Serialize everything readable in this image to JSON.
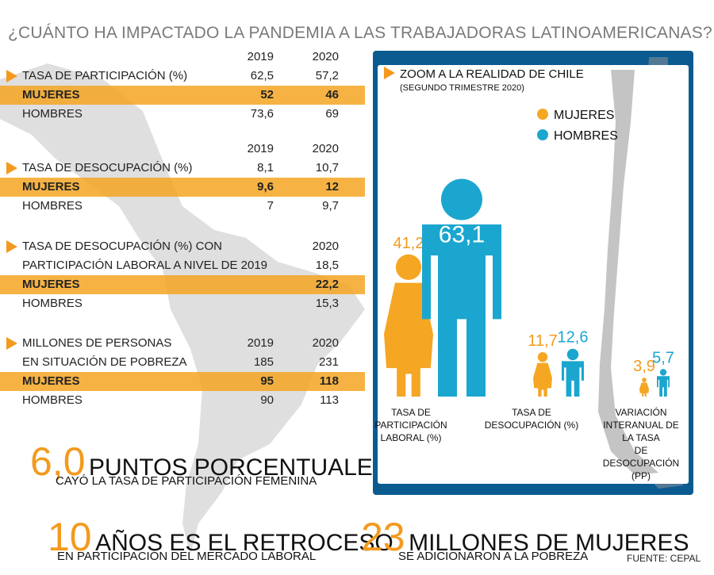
{
  "title": "¿CUÁNTO HA IMPACTADO LA PANDEMIA A LAS TRABAJADORAS LATINOAMERICANAS?",
  "colors": {
    "mujeres": "#f5a623",
    "hombres": "#1aa6cf",
    "accent": "#f39a1e",
    "panel": "#0b5b91"
  },
  "tables": [
    {
      "years": [
        "2019",
        "2020"
      ],
      "rows": [
        {
          "label": "TASA DE PARTICIPACIÓN (%)",
          "v2019": "62,5",
          "v2020": "57,2"
        },
        {
          "label": "MUJERES",
          "v2019": "52",
          "v2020": "46"
        },
        {
          "label": "HOMBRES",
          "v2019": "73,6",
          "v2020": "69"
        }
      ]
    },
    {
      "years": [
        "2019",
        "2020"
      ],
      "rows": [
        {
          "label": "TASA DE DESOCUPACIÓN (%)",
          "v2019": "8,1",
          "v2020": "10,7"
        },
        {
          "label": "MUJERES",
          "v2019": "9,6",
          "v2020": "12"
        },
        {
          "label": "HOMBRES",
          "v2019": "7",
          "v2020": "9,7"
        }
      ]
    },
    {
      "years": [
        "",
        "2020"
      ],
      "rows": [
        {
          "label": "TASA DE DESOCUPACIÓN (%) CON",
          "v2019": "",
          "v2020": ""
        },
        {
          "label": "PARTICIPACIÓN LABORAL A NIVEL DE 2019",
          "v2019": "",
          "v2020": "18,5"
        },
        {
          "label": "MUJERES",
          "v2019": "",
          "v2020": "22,2"
        },
        {
          "label": "HOMBRES",
          "v2019": "",
          "v2020": "15,3"
        }
      ]
    },
    {
      "years": [
        "2019",
        "2020"
      ],
      "rows": [
        {
          "label": "MILLONES DE PERSONAS",
          "v2019": "",
          "v2020": ""
        },
        {
          "label": "EN SITUACIÓN DE POBREZA",
          "v2019": "185",
          "v2020": "231"
        },
        {
          "label": "MUJERES",
          "v2019": "95",
          "v2020": "118"
        },
        {
          "label": "HOMBRES",
          "v2019": "90",
          "v2020": "113"
        }
      ]
    }
  ],
  "highlights": [
    {
      "number": "6,0",
      "text": "PUNTOS PORCENTUALES",
      "sub": "CAYÓ LA TASA DE PARTICIPACIÓN FEMENINA"
    },
    {
      "number": "10",
      "text": "AÑOS ES EL RETROCESO",
      "sub": "EN PARTICIPACIÓN DEL MERCADO LABORAL"
    },
    {
      "number": "23",
      "text": "MILLONES DE MUJERES",
      "sub": "SE ADICIONARON A LA POBREZA"
    }
  ],
  "source": "FUENTE: CEPAL",
  "chart_data": {
    "type": "bar",
    "title": "ZOOM A LA REALIDAD DE CHILE",
    "subtitle": "(SEGUNDO TRIMESTRE 2020)",
    "legend_placement": "top-right",
    "series": [
      {
        "name": "MUJERES",
        "values": [
          41.2,
          11.7,
          3.9
        ],
        "labels": [
          "41,2",
          "11,7",
          "3,9"
        ]
      },
      {
        "name": "HOMBRES",
        "values": [
          63.1,
          12.6,
          5.7
        ],
        "labels": [
          "63,1",
          "12,6",
          "5,7"
        ]
      }
    ],
    "categories": [
      [
        "TASA DE",
        "PARTICIPACIÓN",
        "LABORAL (%)"
      ],
      [
        "TASA DE",
        "DESOCUPACIÓN (%)"
      ],
      [
        "VARIACIÓN",
        "INTERANUAL DE",
        "LA TASA",
        "DE",
        "DESOCUPACIÓN",
        "(PP)"
      ]
    ]
  }
}
